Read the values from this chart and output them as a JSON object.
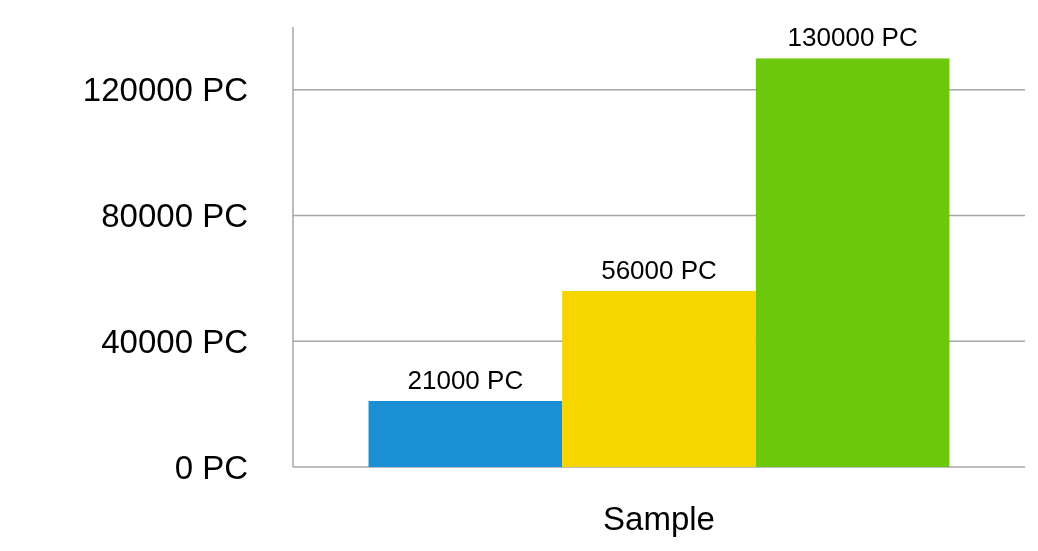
{
  "chart_data": {
    "type": "bar",
    "categories": [
      "Sample"
    ],
    "series": [
      {
        "color": "#1b8fd4",
        "values": [
          21000
        ],
        "value_labels": [
          "21000 PC"
        ]
      },
      {
        "color": "#f7d600",
        "values": [
          56000
        ],
        "value_labels": [
          "56000 PC"
        ]
      },
      {
        "color": "#6cc80c",
        "values": [
          130000
        ],
        "value_labels": [
          "130000 PC"
        ]
      }
    ],
    "ylim": [
      0,
      140000
    ],
    "yticks": [
      {
        "value": 0,
        "label": "0 PC"
      },
      {
        "value": 40000,
        "label": "40000 PC"
      },
      {
        "value": 80000,
        "label": "80000 PC"
      },
      {
        "value": 120000,
        "label": "120000 PC"
      }
    ],
    "grid": "y"
  }
}
